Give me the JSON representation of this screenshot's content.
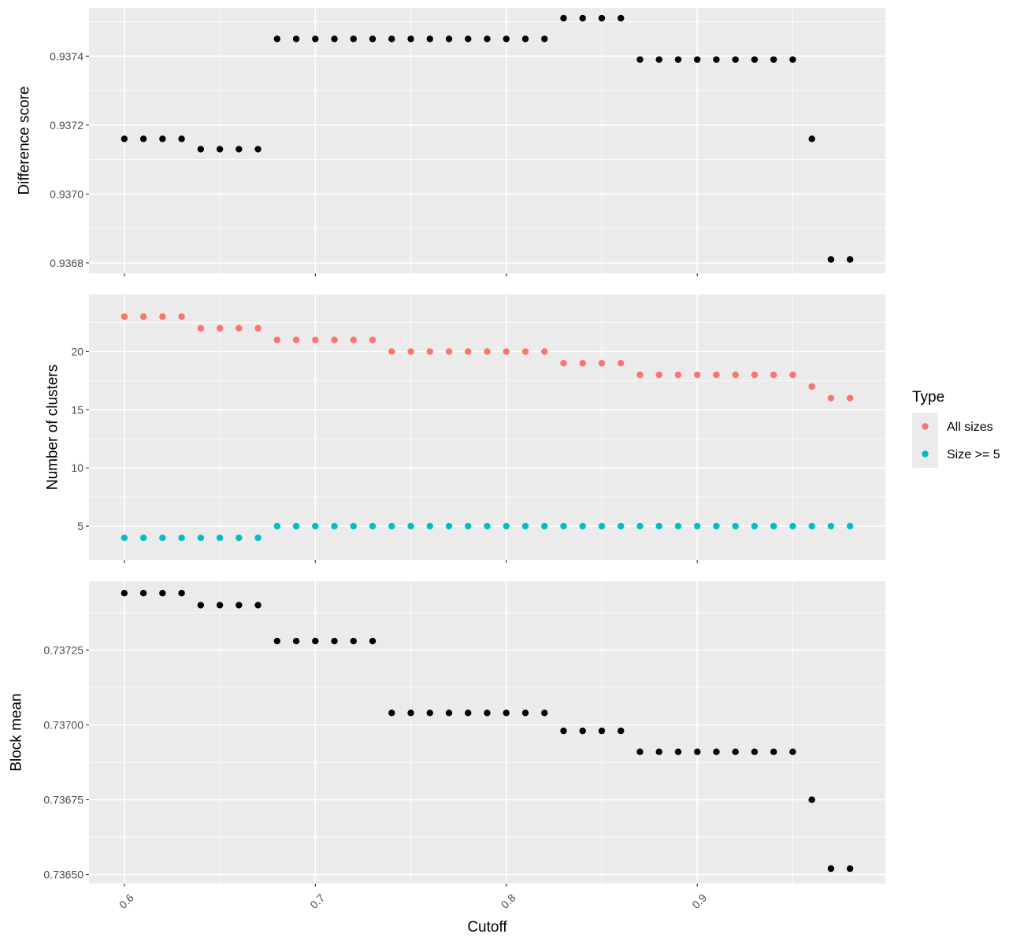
{
  "chart_data": [
    {
      "type": "scatter",
      "ylabel": "Difference score",
      "xlim": [
        0.5815,
        0.9985
      ],
      "ylim": [
        0.93677,
        0.93754
      ],
      "y_ticks": [
        0.9368,
        0.937,
        0.9372,
        0.9374
      ],
      "y_tick_labels": [
        "0.9368",
        "0.9370",
        "0.9372",
        "0.9374"
      ],
      "y_minor_ticks": [
        0.9369,
        0.9371,
        0.9373,
        0.9375
      ],
      "grid": true,
      "color": "#000000",
      "series": [
        {
          "x": [
            0.6,
            0.61,
            0.62,
            0.63,
            0.64,
            0.65,
            0.66,
            0.67,
            0.68,
            0.69,
            0.7,
            0.71,
            0.72,
            0.73,
            0.74,
            0.75,
            0.76,
            0.77,
            0.78,
            0.79,
            0.8,
            0.81,
            0.82,
            0.83,
            0.84,
            0.85,
            0.86,
            0.87,
            0.88,
            0.89,
            0.9,
            0.91,
            0.92,
            0.93,
            0.94,
            0.95,
            0.96,
            0.97,
            0.98
          ],
          "y": [
            0.93716,
            0.93716,
            0.93716,
            0.93716,
            0.93713,
            0.93713,
            0.93713,
            0.93713,
            0.93745,
            0.93745,
            0.93745,
            0.93745,
            0.93745,
            0.93745,
            0.93745,
            0.93745,
            0.93745,
            0.93745,
            0.93745,
            0.93745,
            0.93745,
            0.93745,
            0.93745,
            0.93751,
            0.93751,
            0.93751,
            0.93751,
            0.93739,
            0.93739,
            0.93739,
            0.93739,
            0.93739,
            0.93739,
            0.93739,
            0.93739,
            0.93739,
            0.93716,
            0.93681,
            0.93681
          ]
        }
      ]
    },
    {
      "type": "scatter",
      "ylabel": "Number of clusters",
      "xlim": [
        0.5815,
        0.9985
      ],
      "ylim": [
        2.1,
        24.9
      ],
      "y_ticks": [
        5,
        10,
        15,
        20
      ],
      "y_tick_labels": [
        "5",
        "10",
        "15",
        "20"
      ],
      "y_minor_ticks": [
        7.5,
        12.5,
        17.5,
        22.5
      ],
      "grid": true,
      "legend": {
        "title": "Type",
        "position": "right"
      },
      "series": [
        {
          "name": "All sizes",
          "color": "#F8766D",
          "x": [
            0.6,
            0.61,
            0.62,
            0.63,
            0.64,
            0.65,
            0.66,
            0.67,
            0.68,
            0.69,
            0.7,
            0.71,
            0.72,
            0.73,
            0.74,
            0.75,
            0.76,
            0.77,
            0.78,
            0.79,
            0.8,
            0.81,
            0.82,
            0.83,
            0.84,
            0.85,
            0.86,
            0.87,
            0.88,
            0.89,
            0.9,
            0.91,
            0.92,
            0.93,
            0.94,
            0.95,
            0.96,
            0.97,
            0.98
          ],
          "y": [
            23,
            23,
            23,
            23,
            22,
            22,
            22,
            22,
            21,
            21,
            21,
            21,
            21,
            21,
            20,
            20,
            20,
            20,
            20,
            20,
            20,
            20,
            20,
            19,
            19,
            19,
            19,
            18,
            18,
            18,
            18,
            18,
            18,
            18,
            18,
            18,
            17,
            16,
            16
          ]
        },
        {
          "name": "Size >= 5",
          "color": "#00BFC4",
          "x": [
            0.6,
            0.61,
            0.62,
            0.63,
            0.64,
            0.65,
            0.66,
            0.67,
            0.68,
            0.69,
            0.7,
            0.71,
            0.72,
            0.73,
            0.74,
            0.75,
            0.76,
            0.77,
            0.78,
            0.79,
            0.8,
            0.81,
            0.82,
            0.83,
            0.84,
            0.85,
            0.86,
            0.87,
            0.88,
            0.89,
            0.9,
            0.91,
            0.92,
            0.93,
            0.94,
            0.95,
            0.96,
            0.97,
            0.98
          ],
          "y": [
            4,
            4,
            4,
            4,
            4,
            4,
            4,
            4,
            5,
            5,
            5,
            5,
            5,
            5,
            5,
            5,
            5,
            5,
            5,
            5,
            5,
            5,
            5,
            5,
            5,
            5,
            5,
            5,
            5,
            5,
            5,
            5,
            5,
            5,
            5,
            5,
            5,
            5,
            5
          ]
        }
      ]
    },
    {
      "type": "scatter",
      "ylabel": "Block mean",
      "xlabel": "Cutoff",
      "xlim": [
        0.5815,
        0.9985
      ],
      "x_ticks": [
        0.6,
        0.7,
        0.8,
        0.9
      ],
      "x_tick_labels": [
        "0.6",
        "0.7",
        "0.8",
        "0.9"
      ],
      "x_minor_ticks": [
        0.65,
        0.75,
        0.85,
        0.95
      ],
      "ylim": [
        0.73647,
        0.73748
      ],
      "y_ticks": [
        0.7365,
        0.73675,
        0.737,
        0.73725
      ],
      "y_tick_labels": [
        "0.73650",
        "0.73675",
        "0.73700",
        "0.73725"
      ],
      "y_minor_ticks": [
        0.736625,
        0.736875,
        0.737125,
        0.737375
      ],
      "grid": true,
      "color": "#000000",
      "series": [
        {
          "x": [
            0.6,
            0.61,
            0.62,
            0.63,
            0.64,
            0.65,
            0.66,
            0.67,
            0.68,
            0.69,
            0.7,
            0.71,
            0.72,
            0.73,
            0.74,
            0.75,
            0.76,
            0.77,
            0.78,
            0.79,
            0.8,
            0.81,
            0.82,
            0.83,
            0.84,
            0.85,
            0.86,
            0.87,
            0.88,
            0.89,
            0.9,
            0.91,
            0.92,
            0.93,
            0.94,
            0.95,
            0.96,
            0.97,
            0.98
          ],
          "y": [
            0.73744,
            0.73744,
            0.73744,
            0.73744,
            0.7374,
            0.7374,
            0.7374,
            0.7374,
            0.73728,
            0.73728,
            0.73728,
            0.73728,
            0.73728,
            0.73728,
            0.73704,
            0.73704,
            0.73704,
            0.73704,
            0.73704,
            0.73704,
            0.73704,
            0.73704,
            0.73704,
            0.73698,
            0.73698,
            0.73698,
            0.73698,
            0.73691,
            0.73691,
            0.73691,
            0.73691,
            0.73691,
            0.73691,
            0.73691,
            0.73691,
            0.73691,
            0.73675,
            0.73652,
            0.73652
          ]
        }
      ]
    }
  ]
}
